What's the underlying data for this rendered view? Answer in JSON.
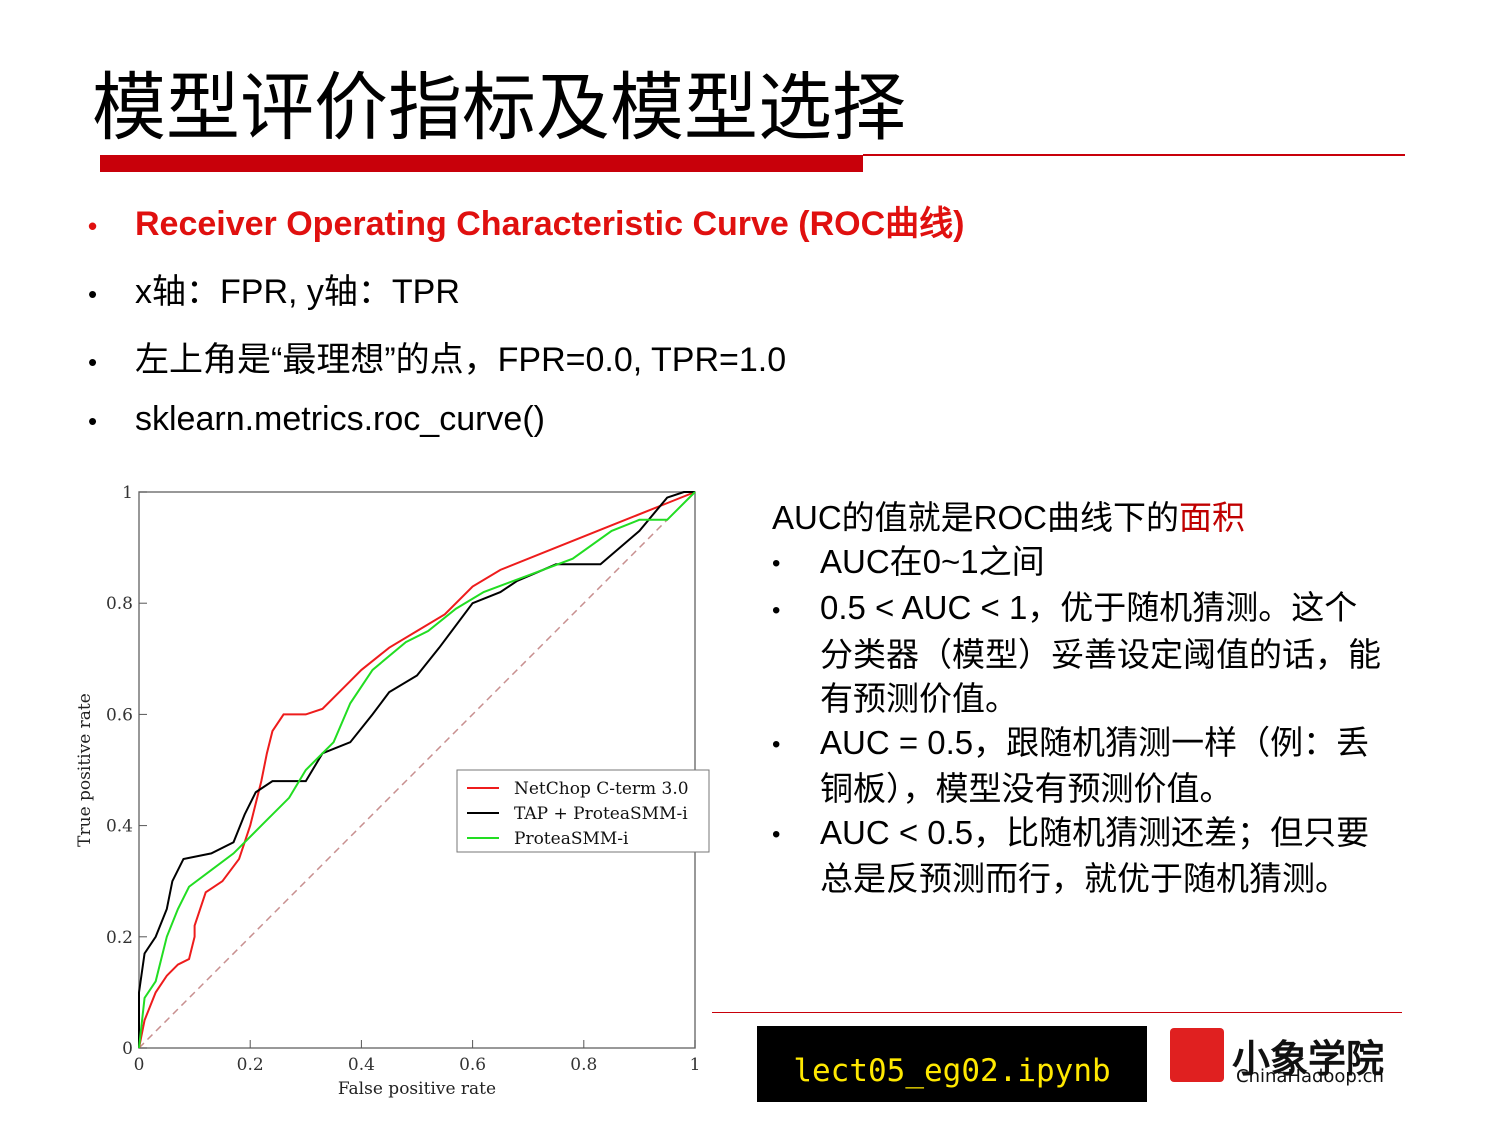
{
  "title": "模型评价指标及模型选择",
  "bullets": [
    "Receiver Operating Characteristic Curve (ROC曲线)",
    "x轴：FPR, y轴：TPR",
    "左上角是“最理想”的点，FPR=0.0, TPR=1.0",
    "sklearn.metrics.roc_curve()"
  ],
  "auc_box": {
    "heading": "AUC的值就是ROC曲线下的",
    "heading_highlight": "面积",
    "items": [
      [
        "AUC在0~1之间"
      ],
      [
        "0.5 < AUC < 1，优于随机猜测。这个",
        "分类器（模型）妥善设定阈值的话，能",
        "有预测价值。"
      ],
      [
        "AUC = 0.5，跟随机猜测一样（例：丢",
        "铜板），模型没有预测价值。"
      ],
      [
        "AUC < 0.5，比随机猜测还差；但只要",
        "总是反预测而行，就优于随机猜测。"
      ]
    ]
  },
  "footer": {
    "file": "lect05_eg02.ipynb",
    "logo_name": "小象学院",
    "logo_site": "ChinaHadoop.cn"
  },
  "chart_data": {
    "type": "line",
    "xlabel": "False positive rate",
    "ylabel": "True positive rate",
    "xlim": [
      0,
      1
    ],
    "ylim": [
      0,
      1
    ],
    "xticks": [
      0,
      0.2,
      0.4,
      0.6,
      0.8,
      1
    ],
    "yticks": [
      0,
      0.2,
      0.4,
      0.6,
      0.8,
      1
    ],
    "series": [
      {
        "name": "NetChop C-term 3.0",
        "color": "#ee1c1c",
        "x": [
          0,
          0.01,
          0.03,
          0.05,
          0.07,
          0.09,
          0.1,
          0.1,
          0.12,
          0.15,
          0.18,
          0.2,
          0.22,
          0.23,
          0.24,
          0.26,
          0.3,
          0.33,
          0.36,
          0.38,
          0.4,
          0.45,
          0.5,
          0.55,
          0.6,
          0.65,
          0.75,
          0.85,
          0.95,
          1
        ],
        "values": [
          0,
          0.05,
          0.1,
          0.13,
          0.15,
          0.16,
          0.2,
          0.22,
          0.28,
          0.3,
          0.34,
          0.4,
          0.48,
          0.53,
          0.57,
          0.6,
          0.6,
          0.61,
          0.64,
          0.66,
          0.68,
          0.72,
          0.75,
          0.78,
          0.83,
          0.86,
          0.9,
          0.94,
          0.98,
          1
        ]
      },
      {
        "name": "TAP + ProteaSMM-i",
        "color": "#000000",
        "x": [
          0,
          0,
          0.01,
          0.03,
          0.05,
          0.06,
          0.08,
          0.13,
          0.17,
          0.19,
          0.21,
          0.24,
          0.3,
          0.33,
          0.38,
          0.42,
          0.45,
          0.5,
          0.54,
          0.6,
          0.65,
          0.68,
          0.75,
          0.83,
          0.9,
          0.95,
          0.98,
          1
        ],
        "values": [
          0,
          0.1,
          0.17,
          0.2,
          0.25,
          0.3,
          0.34,
          0.35,
          0.37,
          0.42,
          0.46,
          0.48,
          0.48,
          0.53,
          0.55,
          0.6,
          0.64,
          0.67,
          0.72,
          0.8,
          0.82,
          0.84,
          0.87,
          0.87,
          0.93,
          0.99,
          1,
          1
        ]
      },
      {
        "name": "ProteaSMM-i",
        "color": "#22dd22",
        "x": [
          0,
          0.01,
          0.03,
          0.05,
          0.07,
          0.09,
          0.13,
          0.17,
          0.22,
          0.27,
          0.3,
          0.35,
          0.38,
          0.42,
          0.48,
          0.52,
          0.57,
          0.62,
          0.7,
          0.78,
          0.85,
          0.9,
          0.95,
          1
        ],
        "values": [
          0,
          0.09,
          0.12,
          0.2,
          0.25,
          0.29,
          0.32,
          0.35,
          0.4,
          0.45,
          0.5,
          0.55,
          0.62,
          0.68,
          0.73,
          0.75,
          0.79,
          0.82,
          0.85,
          0.88,
          0.93,
          0.95,
          0.95,
          1
        ]
      }
    ]
  }
}
